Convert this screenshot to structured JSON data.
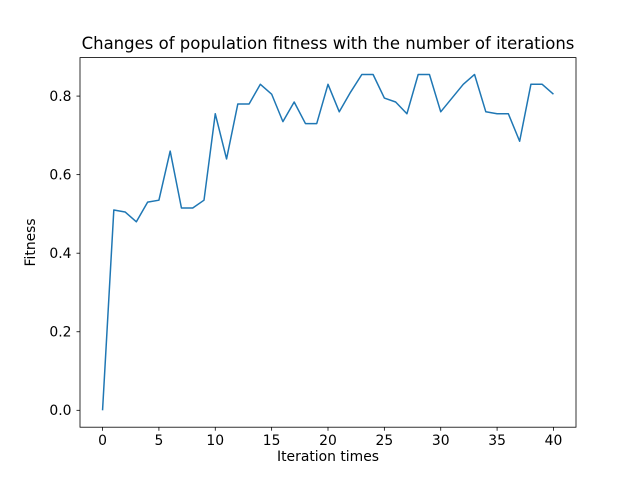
{
  "chart_data": {
    "type": "line",
    "title": "Changes of population fitness with the number of iterations",
    "xlabel": "Iteration times",
    "ylabel": "Fitness",
    "x": [
      0,
      1,
      2,
      3,
      4,
      5,
      6,
      7,
      8,
      9,
      10,
      11,
      12,
      13,
      14,
      15,
      16,
      17,
      18,
      19,
      20,
      21,
      22,
      23,
      24,
      25,
      26,
      27,
      28,
      29,
      30,
      31,
      32,
      33,
      34,
      35,
      36,
      37,
      38,
      39,
      40
    ],
    "y": [
      0.0,
      0.51,
      0.505,
      0.48,
      0.53,
      0.535,
      0.66,
      0.515,
      0.515,
      0.535,
      0.755,
      0.64,
      0.78,
      0.78,
      0.83,
      0.805,
      0.735,
      0.785,
      0.73,
      0.73,
      0.83,
      0.76,
      0.81,
      0.855,
      0.855,
      0.795,
      0.785,
      0.755,
      0.855,
      0.855,
      0.76,
      0.795,
      0.83,
      0.855,
      0.76,
      0.755,
      0.755,
      0.685,
      0.83,
      0.83,
      0.805
    ],
    "series_name": "population fitness",
    "line_color": "#1f77b4",
    "axis_color": "#000000",
    "background_color": "#ffffff",
    "xlim": [
      -2,
      42
    ],
    "ylim": [
      -0.043,
      0.898
    ],
    "x_ticks": [
      0,
      5,
      10,
      15,
      20,
      25,
      30,
      35,
      40
    ],
    "y_ticks": [
      0.0,
      0.2,
      0.4,
      0.6,
      0.8
    ],
    "grid": false,
    "legend_position": "none"
  }
}
